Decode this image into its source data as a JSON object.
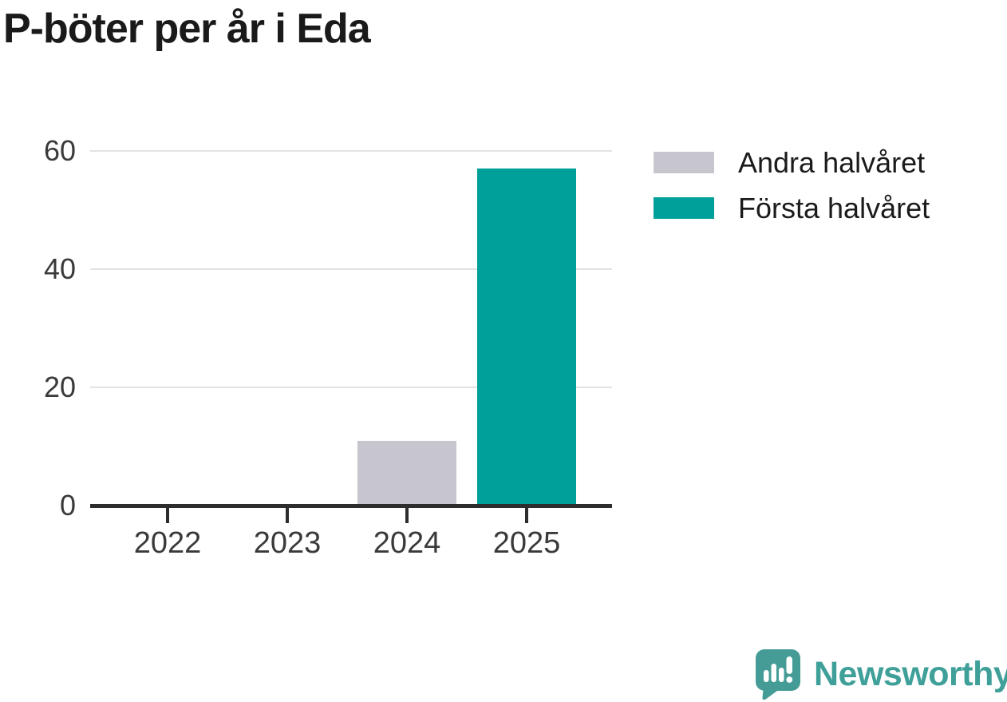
{
  "title": "P-böter per år i Eda",
  "chart_data": {
    "type": "bar",
    "stacked": true,
    "categories": [
      "2022",
      "2023",
      "2024",
      "2025"
    ],
    "series": [
      {
        "name": "Första halvåret",
        "color": "#00a09a",
        "values": [
          0,
          0,
          0,
          57
        ]
      },
      {
        "name": "Andra halvåret",
        "color": "#c7c6ce",
        "values": [
          0,
          0,
          11,
          0
        ]
      }
    ],
    "title": "P-böter per år i Eda",
    "xlabel": "",
    "ylabel": "",
    "ylim": [
      0,
      62
    ],
    "yticks": [
      0,
      20,
      40,
      60
    ],
    "grid": true,
    "gridline_color": "#e3e3e3",
    "axis_color": "#2d2d2d",
    "legend_position": "right-top"
  },
  "legend": {
    "items": [
      {
        "label": "Andra halvåret",
        "color": "#c7c6ce"
      },
      {
        "label": "Första halvåret",
        "color": "#00a09a"
      }
    ]
  },
  "branding": {
    "name": "Newsworthy",
    "color": "#3f9f99",
    "icon": "newsworthy-chart-bubble-icon",
    "icon_color": "#459c96"
  }
}
